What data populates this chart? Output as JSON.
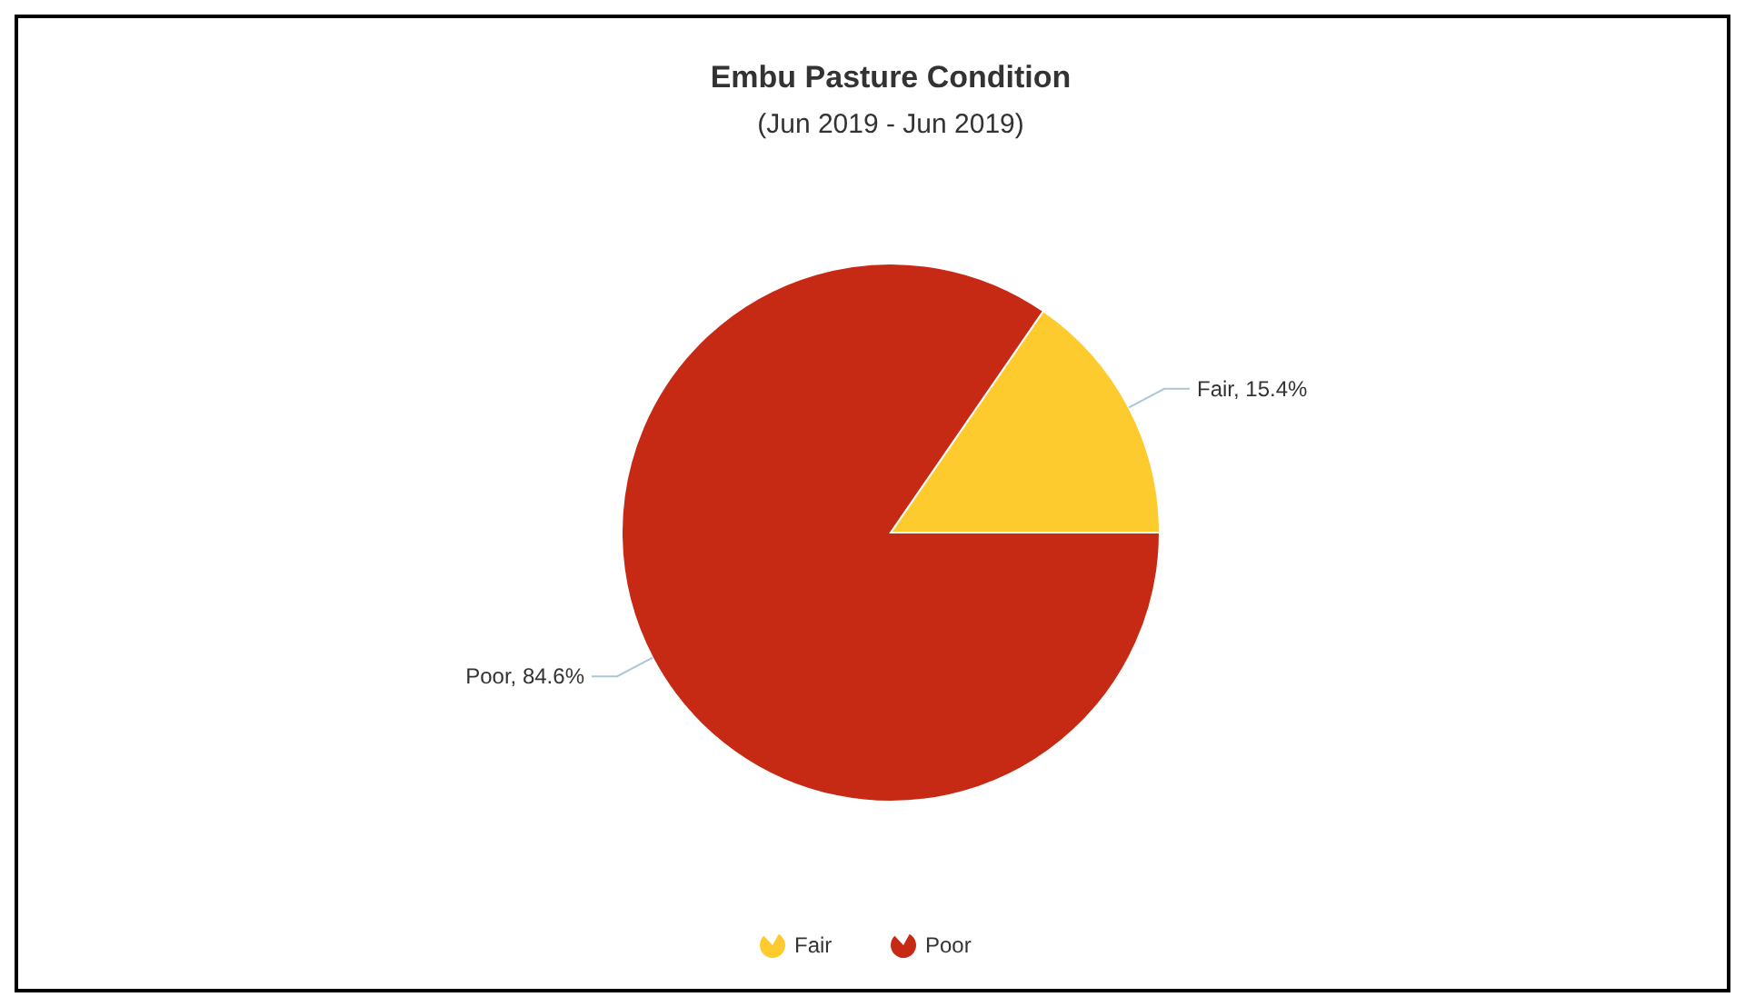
{
  "chart_data": {
    "type": "pie",
    "title": "Embu Pasture Condition",
    "subtitle": "(Jun 2019 - Jun 2019)",
    "categories": [
      "Fair",
      "Poor"
    ],
    "values": [
      15.4,
      84.6
    ],
    "colors": [
      "#fecb2f",
      "#c72a14"
    ],
    "value_labels": [
      "Fair, 15.4%",
      "Poor, 84.6%"
    ],
    "legend": "bottom"
  }
}
